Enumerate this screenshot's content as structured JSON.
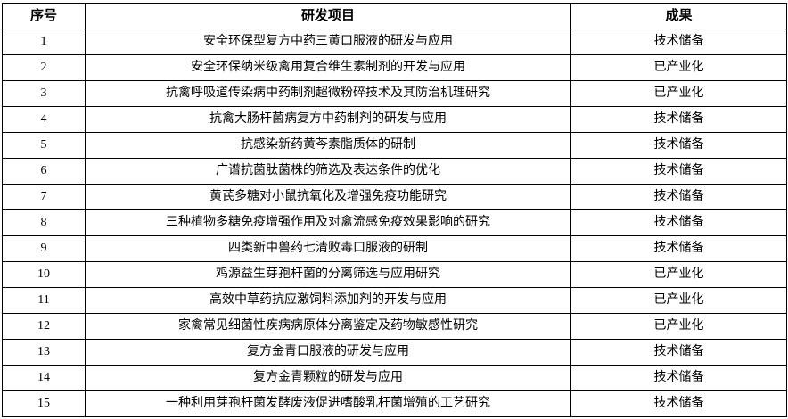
{
  "table": {
    "headers": [
      "序号",
      "研发项目",
      "成果"
    ],
    "rows": [
      {
        "no": "1",
        "project": "安全环保型复方中药三黄口服液的研发与应用",
        "result": "技术储备"
      },
      {
        "no": "2",
        "project": "安全环保纳米级禽用复合维生素制剂的开发与应用",
        "result": "已产业化"
      },
      {
        "no": "3",
        "project": "抗禽呼吸道传染病中药制剂超微粉碎技术及其防治机理研究",
        "result": "已产业化"
      },
      {
        "no": "4",
        "project": "抗禽大肠杆菌病复方中药制剂的研发与应用",
        "result": "技术储备"
      },
      {
        "no": "5",
        "project": "抗感染新药黄芩素脂质体的研制",
        "result": "技术储备"
      },
      {
        "no": "6",
        "project": "广谱抗菌肽菌株的筛选及表达条件的优化",
        "result": "技术储备"
      },
      {
        "no": "7",
        "project": "黄芪多糖对小鼠抗氧化及增强免疫功能研究",
        "result": "技术储备"
      },
      {
        "no": "8",
        "project": "三种植物多糖免疫增强作用及对禽流感免疫效果影响的研究",
        "result": "技术储备"
      },
      {
        "no": "9",
        "project": "四类新中兽药七清败毒口服液的研制",
        "result": "技术储备"
      },
      {
        "no": "10",
        "project": "鸡源益生芽孢杆菌的分离筛选与应用研究",
        "result": "已产业化"
      },
      {
        "no": "11",
        "project": "高效中草药抗应激饲料添加剂的开发与应用",
        "result": "已产业化"
      },
      {
        "no": "12",
        "project": "家禽常见细菌性疾病病原体分离鉴定及药物敏感性研究",
        "result": "已产业化"
      },
      {
        "no": "13",
        "project": "复方金青口服液的研发与应用",
        "result": "技术储备"
      },
      {
        "no": "14",
        "project": "复方金青颗粒的研发与应用",
        "result": "技术储备"
      },
      {
        "no": "15",
        "project": "一种利用芽孢杆菌发酵废液促进嗜酸乳杆菌增殖的工艺研究",
        "result": "技术储备"
      }
    ]
  }
}
